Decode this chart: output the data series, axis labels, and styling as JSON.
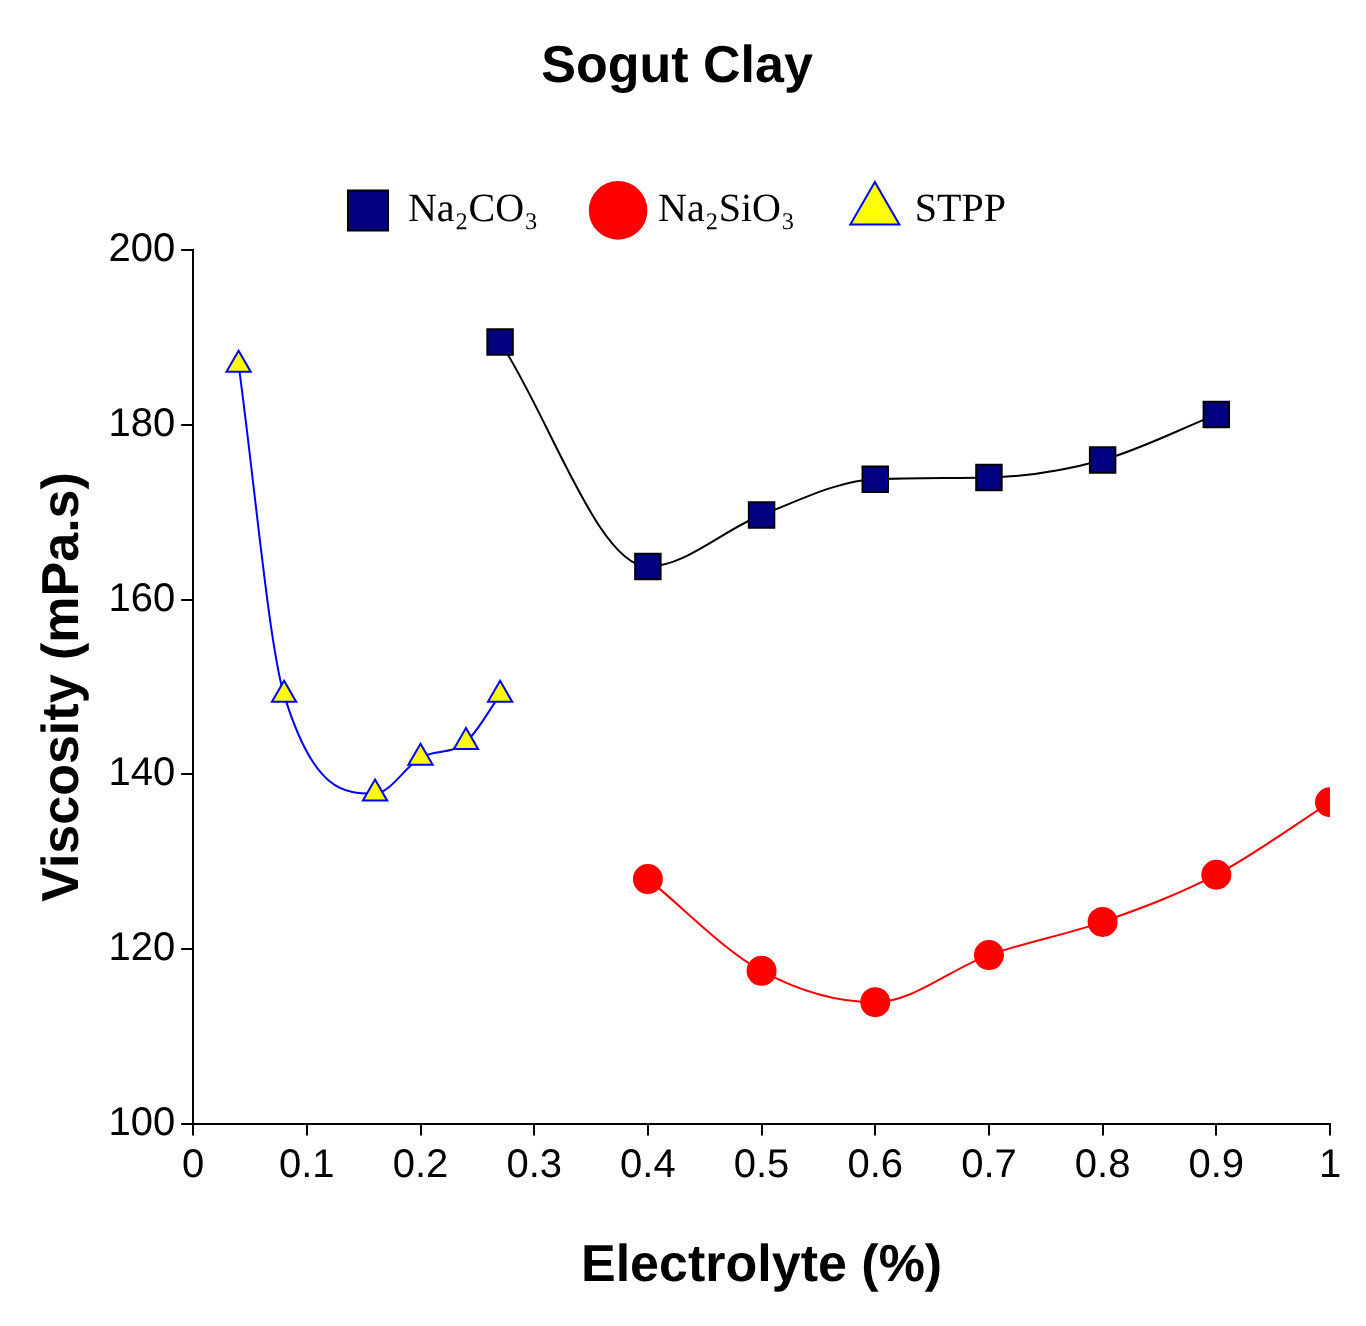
{
  "chart_data": {
    "type": "line",
    "title": "Sogut Clay",
    "xlabel": "Electrolyte (%)",
    "ylabel": "Viscosity (mPa.s)",
    "series": [
      {
        "name": "Na₂CO₃",
        "color": "#000000",
        "colors": [
          "#000080",
          "#000080",
          "#000080",
          "#000080",
          "#000080",
          "#000080",
          "#000080"
        ],
        "marker": "square",
        "x": [
          0.27,
          0.4,
          0.5,
          0.6,
          0.7,
          0.8,
          0.9
        ],
        "values": [
          189.5,
          163.8,
          169.7,
          173.8,
          174,
          176,
          181.2
        ]
      },
      {
        "name": "Na₂SiO₃",
        "color": "#ff0000",
        "colors": [
          "#ff0000",
          "#ff0000",
          "#ff0000",
          "#ff0000",
          "#ff0000",
          "#ff0000",
          "#ff0000"
        ],
        "marker": "circle",
        "x": [
          0.4,
          0.5,
          0.6,
          0.7,
          0.8,
          0.9,
          1.0
        ],
        "values": [
          128,
          117.5,
          113.9,
          119.3,
          123.1,
          128.5,
          136.8
        ]
      },
      {
        "name": "STPP",
        "color": "#0000ff",
        "colors": [
          "#ffff00",
          "#ffff00",
          "#ffff00",
          "#ffff00",
          "#ffff00",
          "#ffff00"
        ],
        "marker": "triangle",
        "x": [
          0.04,
          0.08,
          0.16,
          0.2,
          0.24,
          0.27
        ],
        "values": [
          186.9,
          149.1,
          137.8,
          141.9,
          143.7,
          149.1
        ]
      }
    ],
    "xlim": [
      0,
      1
    ],
    "xticks": [
      0,
      0.1,
      0.2,
      0.3,
      0.4,
      0.5,
      0.6,
      0.7,
      0.8,
      0.9,
      1
    ],
    "ylim": [
      100,
      200
    ],
    "yticks": [
      100,
      120,
      140,
      160,
      180,
      200
    ],
    "grid": false,
    "legend": "top",
    "line_style": "solid"
  }
}
